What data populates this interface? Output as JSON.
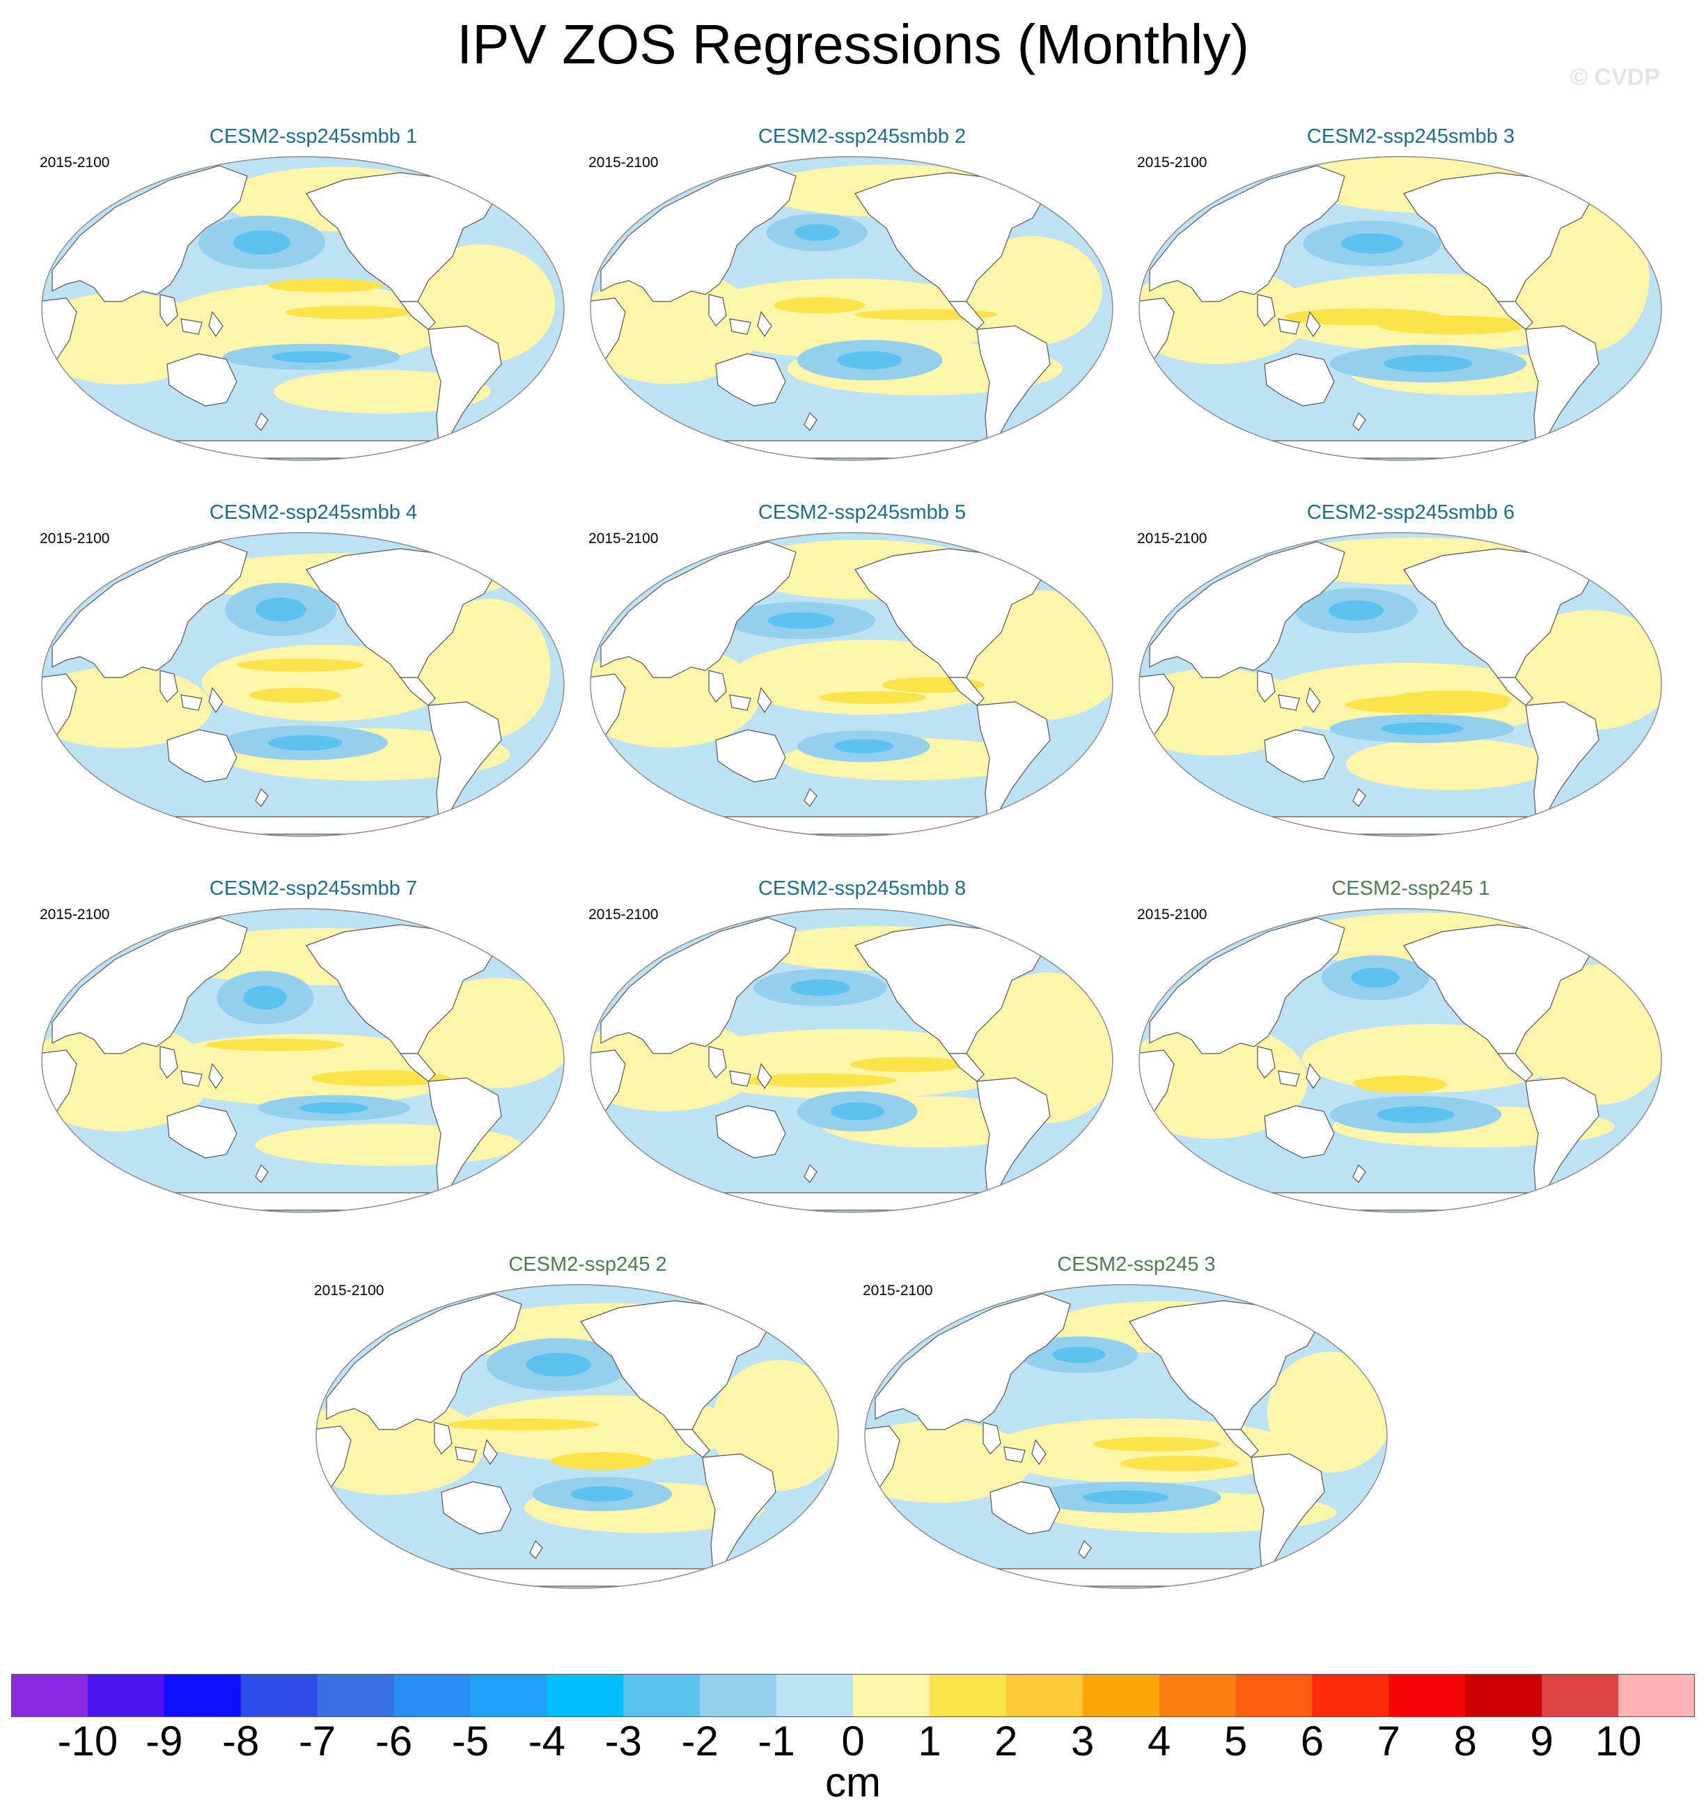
{
  "title": "IPV ZOS Regressions (Monthly)",
  "watermark": "© CVDP",
  "panels": [
    {
      "label": "CESM2-ssp245smbb 1",
      "period": "2015-2100",
      "kind": "smbb"
    },
    {
      "label": "CESM2-ssp245smbb 2",
      "period": "2015-2100",
      "kind": "smbb"
    },
    {
      "label": "CESM2-ssp245smbb 3",
      "period": "2015-2100",
      "kind": "smbb"
    },
    {
      "label": "CESM2-ssp245smbb 4",
      "period": "2015-2100",
      "kind": "smbb"
    },
    {
      "label": "CESM2-ssp245smbb 5",
      "period": "2015-2100",
      "kind": "smbb"
    },
    {
      "label": "CESM2-ssp245smbb 6",
      "period": "2015-2100",
      "kind": "smbb"
    },
    {
      "label": "CESM2-ssp245smbb 7",
      "period": "2015-2100",
      "kind": "smbb"
    },
    {
      "label": "CESM2-ssp245smbb 8",
      "period": "2015-2100",
      "kind": "smbb"
    },
    {
      "label": "CESM2-ssp245 1",
      "period": "2015-2100",
      "kind": "ssp"
    },
    {
      "label": "CESM2-ssp245 2",
      "period": "2015-2100",
      "kind": "ssp"
    },
    {
      "label": "CESM2-ssp245 3",
      "period": "2015-2100",
      "kind": "ssp"
    }
  ],
  "colorbar": {
    "units": "cm",
    "labels": [
      "-10",
      "-9",
      "-8",
      "-7",
      "-6",
      "-5",
      "-4",
      "-3",
      "-2",
      "-1",
      "0",
      "1",
      "2",
      "3",
      "4",
      "5",
      "6",
      "7",
      "8",
      "9",
      "10"
    ],
    "colors": [
      "#8a2be2",
      "#4b14f0",
      "#1010ff",
      "#2d4ee6",
      "#3a6fe0",
      "#2a8cf5",
      "#1ea0f5",
      "#00c0ff",
      "#5cc3f0",
      "#94d0ee",
      "#bde2f4",
      "#fdf6a8",
      "#fde34a",
      "#fdc935",
      "#fba60a",
      "#fb7d0e",
      "#fc5a0e",
      "#fd2a0a",
      "#f50505",
      "#cc0000",
      "#dd4444",
      "#ffb0b0"
    ]
  },
  "colors": {
    "land": "#ffffff",
    "neg_weak": "#bde2f4",
    "neg_mid": "#94d0ee",
    "neg_strong": "#5cc3f0",
    "pos_weak": "#fdf6a8",
    "pos_mid": "#fde34a",
    "smbb_title": "#1a6e8c",
    "ssp_title": "#4c7d4c"
  }
}
